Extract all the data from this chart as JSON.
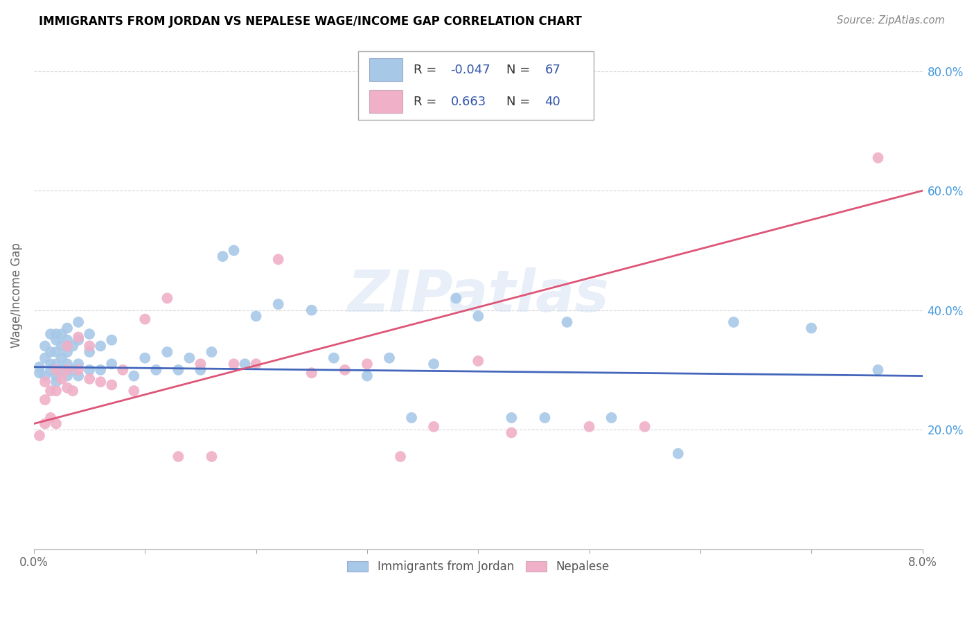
{
  "title": "IMMIGRANTS FROM JORDAN VS NEPALESE WAGE/INCOME GAP CORRELATION CHART",
  "source": "Source: ZipAtlas.com",
  "ylabel": "Wage/Income Gap",
  "xlim": [
    0.0,
    0.08
  ],
  "ylim": [
    0.0,
    0.85
  ],
  "xticks": [
    0.0,
    0.01,
    0.02,
    0.03,
    0.04,
    0.05,
    0.06,
    0.07,
    0.08
  ],
  "yticks": [
    0.2,
    0.4,
    0.6,
    0.8
  ],
  "yticklabels": [
    "20.0%",
    "40.0%",
    "60.0%",
    "80.0%"
  ],
  "jordan_R": -0.047,
  "jordan_N": 67,
  "nepalese_R": 0.663,
  "nepalese_N": 40,
  "jordan_color": "#a8c8e8",
  "jordan_line_color": "#4466bb",
  "nepalese_color": "#f0b0c8",
  "nepalese_line_color": "#dd5577",
  "watermark": "ZIPatlas",
  "jordan_scatter_x": [
    0.0005,
    0.0005,
    0.001,
    0.001,
    0.001,
    0.0015,
    0.0015,
    0.0015,
    0.0015,
    0.002,
    0.002,
    0.002,
    0.002,
    0.002,
    0.002,
    0.002,
    0.0025,
    0.0025,
    0.0025,
    0.0025,
    0.003,
    0.003,
    0.003,
    0.003,
    0.003,
    0.0035,
    0.0035,
    0.004,
    0.004,
    0.004,
    0.004,
    0.005,
    0.005,
    0.005,
    0.006,
    0.006,
    0.007,
    0.007,
    0.009,
    0.01,
    0.011,
    0.012,
    0.013,
    0.014,
    0.015,
    0.016,
    0.017,
    0.018,
    0.019,
    0.02,
    0.022,
    0.025,
    0.027,
    0.03,
    0.032,
    0.034,
    0.036,
    0.038,
    0.04,
    0.043,
    0.046,
    0.048,
    0.052,
    0.058,
    0.063,
    0.07,
    0.076
  ],
  "jordan_scatter_y": [
    0.295,
    0.305,
    0.29,
    0.32,
    0.34,
    0.3,
    0.31,
    0.33,
    0.36,
    0.28,
    0.29,
    0.3,
    0.31,
    0.33,
    0.35,
    0.36,
    0.3,
    0.32,
    0.34,
    0.36,
    0.29,
    0.31,
    0.33,
    0.35,
    0.37,
    0.3,
    0.34,
    0.29,
    0.31,
    0.35,
    0.38,
    0.3,
    0.33,
    0.36,
    0.3,
    0.34,
    0.31,
    0.35,
    0.29,
    0.32,
    0.3,
    0.33,
    0.3,
    0.32,
    0.3,
    0.33,
    0.49,
    0.5,
    0.31,
    0.39,
    0.41,
    0.4,
    0.32,
    0.29,
    0.32,
    0.22,
    0.31,
    0.42,
    0.39,
    0.22,
    0.22,
    0.38,
    0.22,
    0.16,
    0.38,
    0.37,
    0.3
  ],
  "nepalese_scatter_x": [
    0.0005,
    0.001,
    0.001,
    0.001,
    0.0015,
    0.0015,
    0.002,
    0.002,
    0.002,
    0.0025,
    0.003,
    0.003,
    0.003,
    0.0035,
    0.004,
    0.004,
    0.005,
    0.005,
    0.006,
    0.007,
    0.008,
    0.009,
    0.01,
    0.012,
    0.013,
    0.015,
    0.016,
    0.018,
    0.02,
    0.022,
    0.025,
    0.028,
    0.03,
    0.033,
    0.036,
    0.04,
    0.043,
    0.05,
    0.055,
    0.076
  ],
  "nepalese_scatter_y": [
    0.19,
    0.21,
    0.25,
    0.28,
    0.22,
    0.265,
    0.21,
    0.265,
    0.3,
    0.285,
    0.27,
    0.3,
    0.34,
    0.265,
    0.3,
    0.355,
    0.285,
    0.34,
    0.28,
    0.275,
    0.3,
    0.265,
    0.385,
    0.42,
    0.155,
    0.31,
    0.155,
    0.31,
    0.31,
    0.485,
    0.295,
    0.3,
    0.31,
    0.155,
    0.205,
    0.315,
    0.195,
    0.205,
    0.205,
    0.655
  ]
}
